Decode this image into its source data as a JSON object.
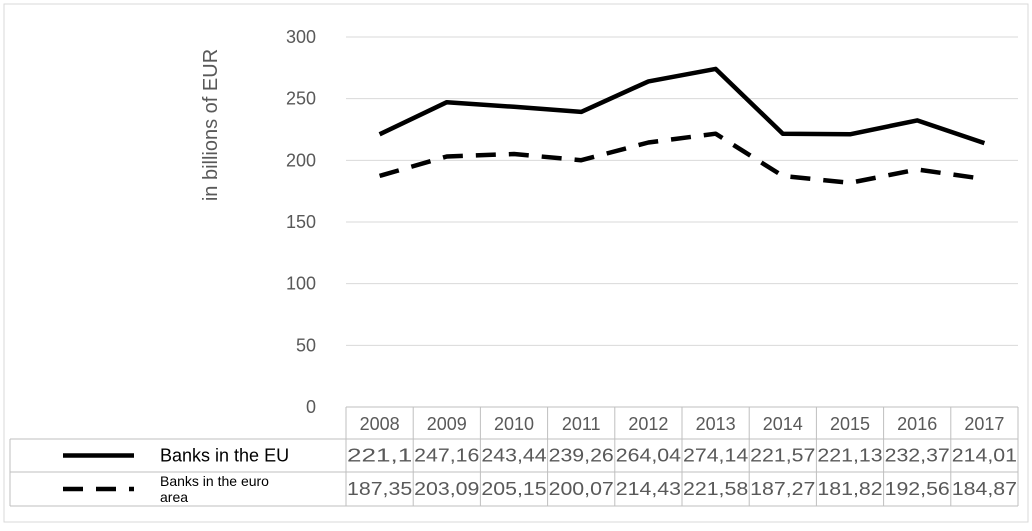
{
  "chart_data": {
    "type": "line",
    "ylabel": "in billions of EUR",
    "xlabel": "",
    "title": "",
    "ylim": [
      0,
      300
    ],
    "yticks": [
      "0",
      "50",
      "100",
      "150",
      "200",
      "250",
      "300"
    ],
    "categories": [
      "2008",
      "2009",
      "2010",
      "2011",
      "2012",
      "2013",
      "2014",
      "2015",
      "2016",
      "2017"
    ],
    "grid": "horizontal",
    "legend": "data-table",
    "series": [
      {
        "name": "Banks in the EU",
        "style": "solid",
        "color": "#000000",
        "values": [
          221.1,
          247.16,
          243.44,
          239.26,
          264.04,
          274.14,
          221.57,
          221.13,
          232.37,
          214.01
        ],
        "labels": [
          "221,1",
          "247,16",
          "243,44",
          "239,26",
          "264,04",
          "274,14",
          "221,57",
          "221,13",
          "232,37",
          "214,01"
        ]
      },
      {
        "name": "Banks in the euro area",
        "style": "dashed",
        "color": "#000000",
        "values": [
          187.35,
          203.09,
          205.15,
          200.07,
          214.43,
          221.58,
          187.27,
          181.82,
          192.56,
          184.87
        ],
        "labels": [
          "187,35",
          "203,09",
          "205,15",
          "200,07",
          "214,43",
          "221,58",
          "187,27",
          "181,82",
          "192,56",
          "184,87"
        ]
      }
    ]
  }
}
